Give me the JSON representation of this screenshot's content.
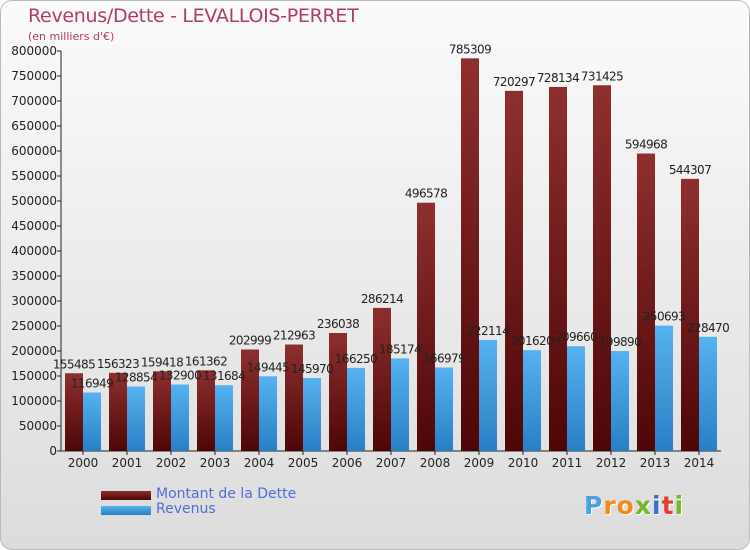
{
  "header": {
    "title": "Revenus/Dette - LEVALLOIS-PERRET",
    "subtitle": "(en milliers d'€)"
  },
  "chart_data": {
    "type": "bar",
    "title": "Revenus/Dette - LEVALLOIS-PERRET",
    "subtitle": "(en milliers d'€)",
    "categories": [
      "2000",
      "2001",
      "2002",
      "2003",
      "2004",
      "2005",
      "2006",
      "2007",
      "2008",
      "2009",
      "2010",
      "2011",
      "2012",
      "2013",
      "2014"
    ],
    "series": [
      {
        "name": "Montant de la Dette",
        "color": "#7a1d1d",
        "values": [
          155485,
          156323,
          159418,
          161362,
          202999,
          212963,
          236038,
          286214,
          496578,
          785309,
          720297,
          728134,
          731425,
          594968,
          544307
        ]
      },
      {
        "name": "Revenus",
        "color": "#3d9be0",
        "values": [
          116949,
          128854,
          132900,
          131684,
          149445,
          145970,
          166250,
          185174,
          166979,
          222114,
          201620,
          209660,
          199890,
          250693,
          228470
        ]
      }
    ],
    "ylim": [
      0,
      800000
    ],
    "yticks": [
      0,
      50000,
      100000,
      150000,
      200000,
      250000,
      300000,
      350000,
      400000,
      450000,
      500000,
      550000,
      600000,
      650000,
      700000,
      750000,
      800000
    ],
    "grid": false,
    "legend_position": "bottom-left"
  },
  "legend": [
    {
      "label": "Montant de la Dette",
      "color": "#6b1a1a"
    },
    {
      "label": "Revenus",
      "color": "#3d9be0"
    }
  ],
  "logo": {
    "letters": [
      "P",
      "r",
      "o",
      "x",
      "i",
      "t",
      "i"
    ],
    "colors": [
      "#4aa3e0",
      "#f28c1e",
      "#f28c1e",
      "#77b82a",
      "#3d6fc6",
      "#e63d2e",
      "#77b82a"
    ]
  }
}
